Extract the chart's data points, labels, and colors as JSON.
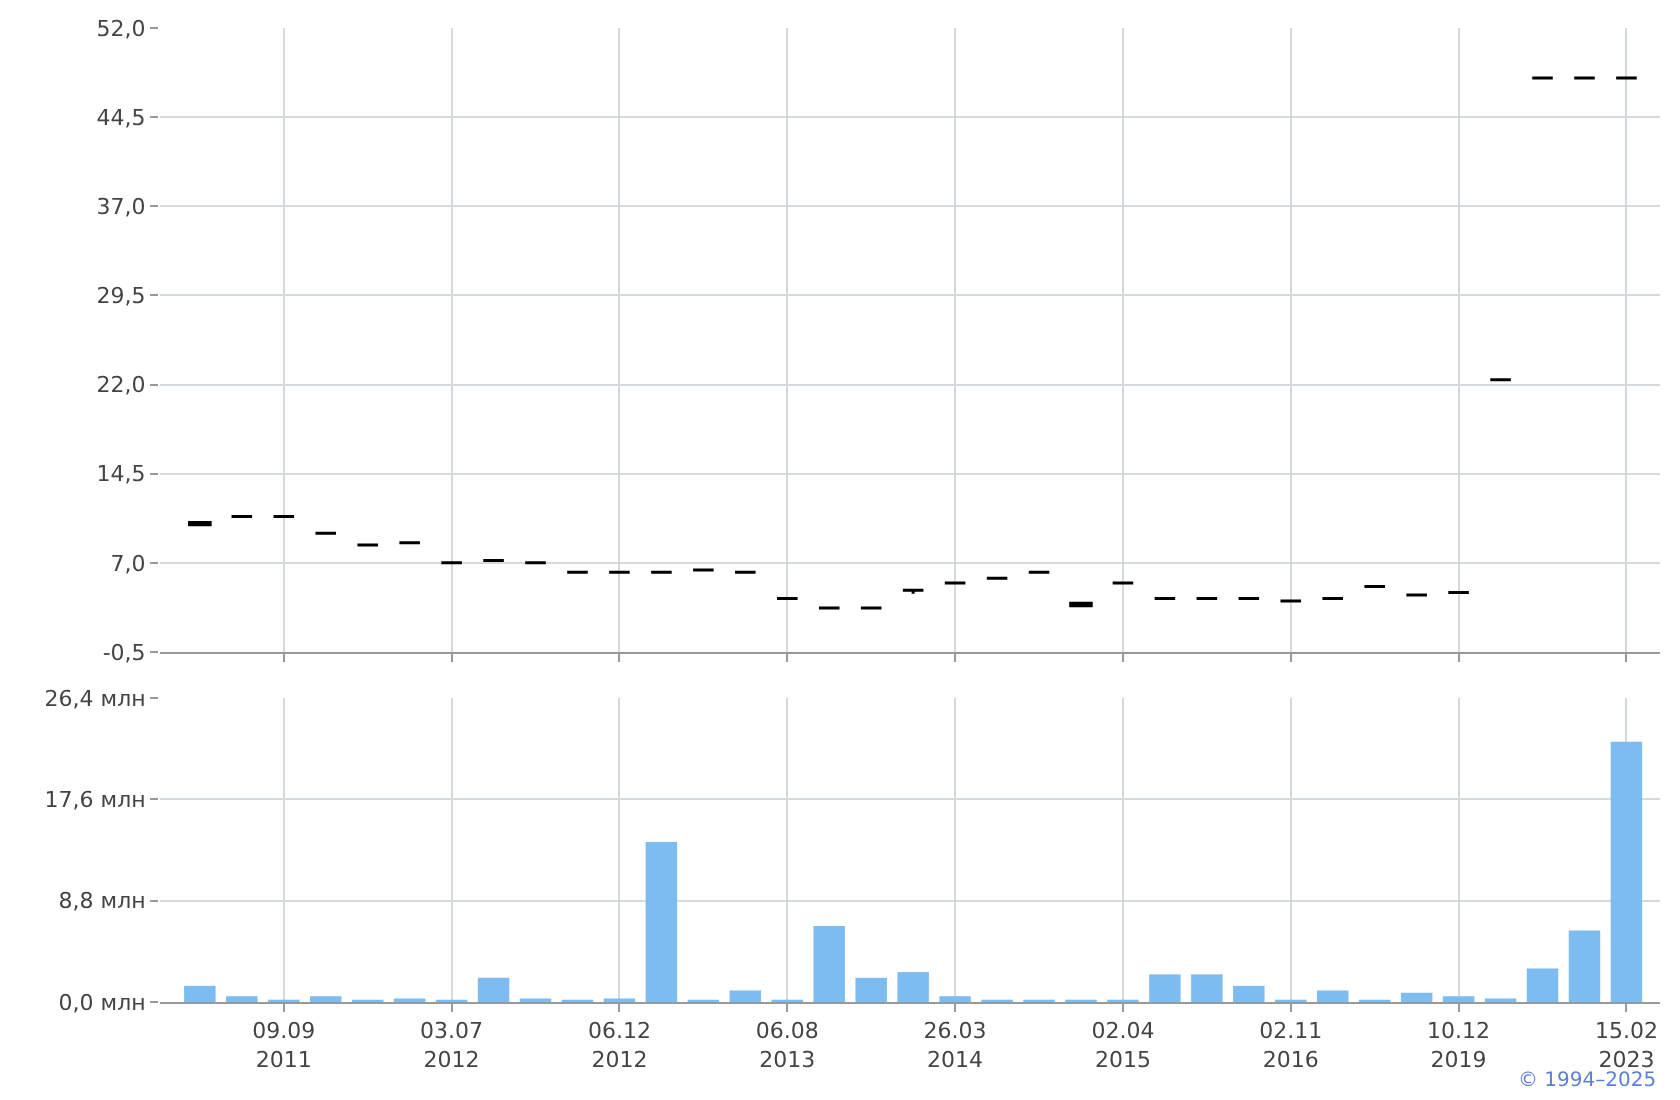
{
  "chart_data": [
    {
      "type": "candlestick",
      "tick_labels": "y",
      "grid": true,
      "categories": [
        null,
        null,
        null,
        null,
        null,
        null,
        null,
        null,
        null,
        null,
        null,
        null,
        null,
        null,
        null,
        null,
        null,
        null,
        null,
        null,
        null,
        null,
        null,
        null,
        null,
        null,
        null,
        null,
        null,
        null,
        null,
        null,
        null,
        null,
        null
      ],
      "ohlc": [
        [
          10.4,
          10.4,
          10.2,
          10.2
        ],
        [
          10.9,
          10.9,
          10.9,
          10.9
        ],
        [
          10.9,
          10.9,
          10.9,
          10.9
        ],
        [
          9.5,
          9.5,
          9.5,
          9.5
        ],
        [
          8.5,
          8.5,
          8.5,
          8.5
        ],
        [
          8.7,
          8.7,
          8.7,
          8.7
        ],
        [
          7.0,
          7.0,
          7.0,
          7.0
        ],
        [
          7.2,
          7.2,
          7.2,
          7.2
        ],
        [
          7.0,
          7.0,
          7.0,
          7.0
        ],
        [
          6.2,
          6.2,
          6.2,
          6.2
        ],
        [
          6.2,
          6.2,
          6.2,
          6.2
        ],
        [
          6.2,
          6.2,
          6.2,
          6.2
        ],
        [
          6.4,
          6.4,
          6.4,
          6.4
        ],
        [
          6.2,
          6.2,
          6.2,
          6.2
        ],
        [
          4.0,
          4.0,
          4.0,
          4.0
        ],
        [
          3.2,
          3.2,
          3.2,
          3.2
        ],
        [
          3.2,
          3.2,
          3.2,
          3.2
        ],
        [
          4.7,
          4.7,
          4.4,
          4.7
        ],
        [
          5.3,
          5.3,
          5.3,
          5.3
        ],
        [
          5.7,
          5.7,
          5.7,
          5.7
        ],
        [
          6.2,
          6.2,
          6.2,
          6.2
        ],
        [
          3.6,
          3.6,
          3.4,
          3.4
        ],
        [
          5.3,
          5.3,
          5.3,
          5.3
        ],
        [
          4.0,
          4.0,
          4.0,
          4.0
        ],
        [
          4.0,
          4.0,
          4.0,
          4.0
        ],
        [
          4.0,
          4.0,
          4.0,
          4.0
        ],
        [
          3.8,
          3.8,
          3.8,
          3.8
        ],
        [
          4.0,
          4.0,
          4.0,
          4.0
        ],
        [
          5.0,
          5.0,
          5.0,
          5.0
        ],
        [
          4.3,
          4.3,
          4.3,
          4.3
        ],
        [
          4.5,
          4.5,
          4.5,
          4.5
        ],
        [
          22.4,
          22.4,
          22.4,
          22.4
        ],
        [
          47.8,
          47.8,
          47.8,
          47.8
        ],
        [
          47.8,
          47.8,
          47.8,
          47.8
        ],
        [
          47.8,
          47.8,
          47.8,
          47.8
        ]
      ],
      "ylim": [
        -0.5,
        52
      ],
      "yticks": [
        {
          "value": -0.5,
          "label": "-0,5"
        },
        {
          "value": 7,
          "label": "7,0"
        },
        {
          "value": 14.5,
          "label": "14,5"
        },
        {
          "value": 22,
          "label": "22,0"
        },
        {
          "value": 29.5,
          "label": "29,5"
        },
        {
          "value": 37,
          "label": "37,0"
        },
        {
          "value": 44.5,
          "label": "44,5"
        },
        {
          "value": 52,
          "label": "52,0"
        }
      ]
    },
    {
      "type": "bar",
      "grid": true,
      "color": "#7dbcf0",
      "categories": [
        null,
        null,
        "09.09 2011",
        null,
        null,
        null,
        "03.07 2012",
        null,
        null,
        null,
        "06.12 2012",
        null,
        null,
        null,
        "06.08 2013",
        null,
        null,
        null,
        "26.03 2014",
        null,
        null,
        null,
        "02.04 2015",
        null,
        null,
        null,
        "02.11 2016",
        null,
        null,
        null,
        "10.12 2019",
        null,
        null,
        null,
        "15.02 2023"
      ],
      "values": [
        1.4,
        0.5,
        0.2,
        0.5,
        0.2,
        0.3,
        0.2,
        2.1,
        0.3,
        0.2,
        0.3,
        13.9,
        0.2,
        1.0,
        0.2,
        6.6,
        2.1,
        2.6,
        0.5,
        0.2,
        0.2,
        0.2,
        0.2,
        2.4,
        2.4,
        1.4,
        0.2,
        1.0,
        0.2,
        0.8,
        0.5,
        0.3,
        2.9,
        6.2,
        22.6
      ],
      "ylim": [
        0,
        26.4
      ],
      "yticks": [
        {
          "value": 0,
          "label": "0,0 млн"
        },
        {
          "value": 8.8,
          "label": "8,8 млн"
        },
        {
          "value": 17.6,
          "label": "17,6 млн"
        },
        {
          "value": 26.4,
          "label": "26,4 млн"
        }
      ],
      "annotations": [
        "© 1994–2025"
      ]
    }
  ]
}
